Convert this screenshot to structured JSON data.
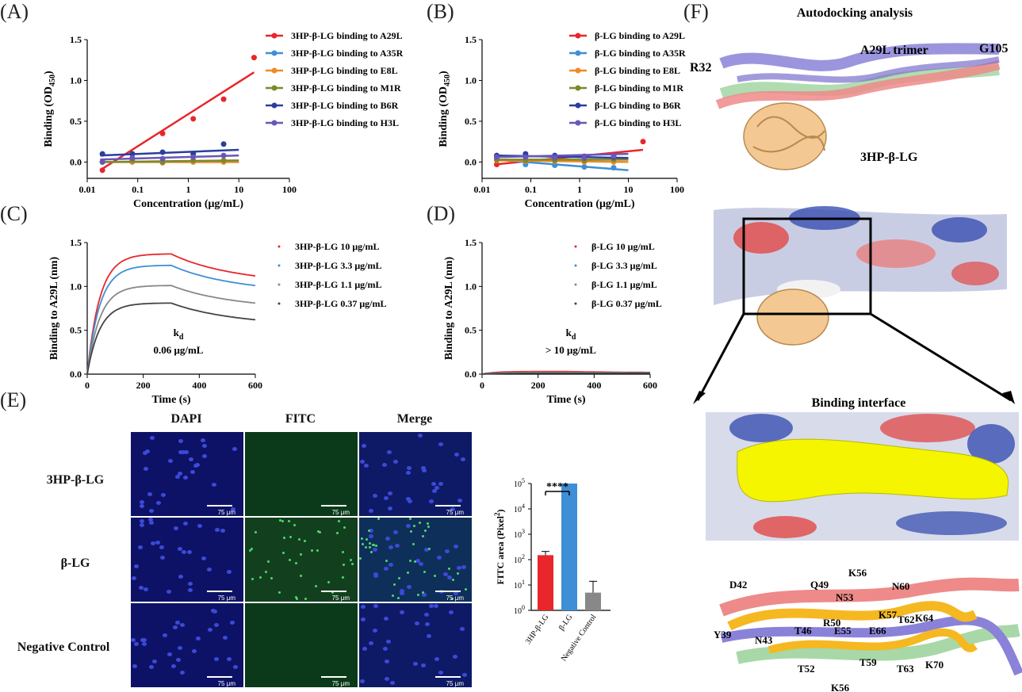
{
  "panels": {
    "A": "(A)",
    "B": "(B)",
    "C": "(C)",
    "D": "(D)",
    "E": "(E)",
    "F": "(F)"
  },
  "colors": {
    "red": "#e8262b",
    "lightblue": "#3e8fd6",
    "orange": "#f08a24",
    "olive": "#7a8a2a",
    "navy": "#2a3f9c",
    "purple": "#6a56b8",
    "gray": "#888888"
  },
  "chart_data": [
    {
      "id": "A",
      "type": "line",
      "xscale": "log",
      "xlabel": "Concentration (μg/mL)",
      "ylabel": "Binding (OD",
      "ylabel_sub": "450",
      "ylabel_end": ")",
      "xlim": [
        0.01,
        100
      ],
      "ylim": [
        -0.2,
        1.5
      ],
      "xticks": [
        "0.01",
        "0.1",
        "1",
        "10",
        "100"
      ],
      "yticks": [
        "0.0",
        "0.5",
        "1.0",
        "1.5"
      ],
      "x": [
        0.02,
        0.078,
        0.31,
        1.25,
        5,
        20
      ],
      "series": [
        {
          "name": "3HP-β-LG binding to A29L",
          "color": "#e8262b",
          "values": [
            -0.1,
            0.1,
            0.35,
            0.53,
            0.77,
            1.28
          ],
          "fit": [
            [
              0.018,
              -0.1
            ],
            [
              20,
              1.1
            ]
          ]
        },
        {
          "name": "3HP-β-LG binding to A35R",
          "color": "#3e8fd6",
          "values": [
            0.0,
            0.0,
            0.0,
            0.0,
            0.0,
            0.0
          ],
          "fit": [
            [
              0.018,
              0.0
            ],
            [
              10,
              0.0
            ]
          ]
        },
        {
          "name": "3HP-β-LG binding to E8L",
          "color": "#f08a24",
          "values": [
            0.0,
            0.0,
            -0.01,
            0.0,
            0.0,
            0.0
          ],
          "fit": [
            [
              0.018,
              0.0
            ],
            [
              10,
              0.0
            ]
          ]
        },
        {
          "name": "3HP-β-LG binding to M1R",
          "color": "#7a8a2a",
          "values": [
            0.0,
            0.02,
            0.0,
            0.02,
            0.02,
            0.02
          ],
          "fit": [
            [
              0.018,
              0.0
            ],
            [
              10,
              0.02
            ]
          ]
        },
        {
          "name": "3HP-β-LG binding to B6R",
          "color": "#2a3f9c",
          "values": [
            0.1,
            0.1,
            0.12,
            0.1,
            0.22,
            0.14
          ],
          "fit": [
            [
              0.018,
              0.08
            ],
            [
              10,
              0.15
            ]
          ]
        },
        {
          "name": "3HP-β-LG binding to H3L",
          "color": "#6a56b8",
          "values": [
            0.0,
            0.05,
            0.04,
            0.06,
            0.08,
            0.07
          ],
          "fit": [
            [
              0.018,
              0.03
            ],
            [
              10,
              0.08
            ]
          ]
        }
      ]
    },
    {
      "id": "B",
      "type": "line",
      "xscale": "log",
      "xlabel": "Concentration (μg/mL)",
      "ylabel": "Binding (OD",
      "ylabel_sub": "450",
      "ylabel_end": ")",
      "xlim": [
        0.01,
        100
      ],
      "ylim": [
        -0.2,
        1.5
      ],
      "xticks": [
        "0.01",
        "0.1",
        "1",
        "10",
        "100"
      ],
      "yticks": [
        "0.0",
        "0.5",
        "1.0",
        "1.5"
      ],
      "x": [
        0.02,
        0.078,
        0.31,
        1.25,
        5,
        20
      ],
      "series": [
        {
          "name": "β-LG binding to A29L",
          "color": "#e8262b",
          "values": [
            -0.03,
            0.02,
            0.05,
            0.07,
            0.09,
            0.25
          ],
          "fit": [
            [
              0.018,
              -0.03
            ],
            [
              20,
              0.15
            ]
          ]
        },
        {
          "name": "β-LG binding to A35R",
          "color": "#3e8fd6",
          "values": [
            0.05,
            -0.03,
            -0.04,
            -0.06,
            -0.07,
            -0.1
          ],
          "fit": [
            [
              0.018,
              0.03
            ],
            [
              10,
              -0.1
            ]
          ]
        },
        {
          "name": "β-LG binding to E8L",
          "color": "#f08a24",
          "values": [
            0.02,
            0.01,
            0.01,
            0.0,
            0.0,
            0.0
          ],
          "fit": [
            [
              0.018,
              0.02
            ],
            [
              10,
              0.0
            ]
          ]
        },
        {
          "name": "β-LG binding to M1R",
          "color": "#7a8a2a",
          "values": [
            0.03,
            0.02,
            0.02,
            0.02,
            0.03,
            0.03
          ],
          "fit": [
            [
              0.018,
              0.03
            ],
            [
              10,
              0.03
            ]
          ]
        },
        {
          "name": "β-LG binding to B6R",
          "color": "#2a3f9c",
          "values": [
            0.08,
            0.1,
            0.08,
            0.07,
            0.06,
            0.05
          ],
          "fit": [
            [
              0.018,
              0.08
            ],
            [
              10,
              0.05
            ]
          ]
        },
        {
          "name": "β-LG binding to H3L",
          "color": "#6a56b8",
          "values": [
            0.06,
            0.06,
            0.05,
            0.05,
            0.07,
            0.1
          ],
          "fit": [
            [
              0.018,
              0.06
            ],
            [
              10,
              0.1
            ]
          ]
        }
      ]
    },
    {
      "id": "C",
      "type": "line",
      "xlabel": "Time (s)",
      "ylabel": "Binding to A29L (nm)",
      "xlim": [
        0,
        600
      ],
      "ylim": [
        0,
        1.5
      ],
      "xticks": [
        "0",
        "200",
        "400",
        "600"
      ],
      "yticks": [
        "0.0",
        "0.5",
        "1.0",
        "1.5"
      ],
      "annotation": "k",
      "annotation_sub": "d",
      "annotation_value": "0.06 μg/mL",
      "series": [
        {
          "name": "3HP-β-LG 10 μg/mL",
          "color": "#e8262b",
          "plateau": 1.37,
          "end": 1.12
        },
        {
          "name": "3HP-β-LG 3.3 μg/mL",
          "color": "#3e8fd6",
          "plateau": 1.24,
          "end": 1.01
        },
        {
          "name": "3HP-β-LG 1.1 μg/mL",
          "color": "#888888",
          "plateau": 1.01,
          "end": 0.81
        },
        {
          "name": "3HP-β-LG 0.37 μg/mL",
          "color": "#444444",
          "plateau": 0.81,
          "end": 0.62
        }
      ]
    },
    {
      "id": "D",
      "type": "line",
      "xlabel": "Time (s)",
      "ylabel": "Binding to A29L (nm)",
      "xlim": [
        0,
        600
      ],
      "ylim": [
        0,
        1.5
      ],
      "xticks": [
        "0",
        "200",
        "400",
        "600"
      ],
      "yticks": [
        "0.0",
        "0.5",
        "1.0",
        "1.5"
      ],
      "annotation": "k",
      "annotation_sub": "d",
      "annotation_value": "> 10 μg/mL",
      "series": [
        {
          "name": "β-LG 10 μg/mL",
          "color": "#e8262b",
          "plateau": 0.03,
          "end": 0.02
        },
        {
          "name": "β-LG 3.3 μg/mL",
          "color": "#3e8fd6",
          "plateau": 0.02,
          "end": 0.015
        },
        {
          "name": "β-LG 1.1 μg/mL",
          "color": "#888888",
          "plateau": 0.02,
          "end": 0.015
        },
        {
          "name": "β-LG 0.37 μg/mL",
          "color": "#444444",
          "plateau": 0.01,
          "end": 0.01
        }
      ]
    },
    {
      "id": "E-bar",
      "type": "bar",
      "yscale": "log",
      "ylabel": "FITC area (Pixel",
      "ylabel_sup": "2",
      "ylabel_end": ")",
      "categories": [
        "3HP-β-LG",
        "β-LG",
        "Negative Control"
      ],
      "values": [
        150,
        100000,
        5
      ],
      "errors": [
        210,
        0,
        14
      ],
      "colors": [
        "#e8262b",
        "#3e8fd6",
        "#888888"
      ],
      "yticks": [
        {
          "b": "10",
          "e": "0"
        },
        {
          "b": "10",
          "e": "1"
        },
        {
          "b": "10",
          "e": "2"
        },
        {
          "b": "10",
          "e": "3"
        },
        {
          "b": "10",
          "e": "4"
        },
        {
          "b": "10",
          "e": "5"
        }
      ],
      "significance": "****"
    }
  ],
  "microscopy": {
    "columns": [
      "DAPI",
      "FITC",
      "Merge"
    ],
    "rows": [
      "3HP-β-LG",
      "β-LG",
      "Negative Control"
    ],
    "scale": "75 μm"
  },
  "structure": {
    "title": "Autodocking analysis",
    "trimer": "A29L trimer",
    "ligand": "3HP-β-LG",
    "left_res": "R32",
    "right_res": "G105",
    "interface": "Binding interface",
    "residues": [
      "D42",
      "Q49",
      "K56",
      "N60",
      "N53",
      "R50",
      "K57",
      "T62",
      "K64",
      "Y39",
      "N43",
      "T46",
      "E55",
      "E66",
      "T52",
      "T59",
      "T63",
      "K70",
      "K56"
    ]
  }
}
